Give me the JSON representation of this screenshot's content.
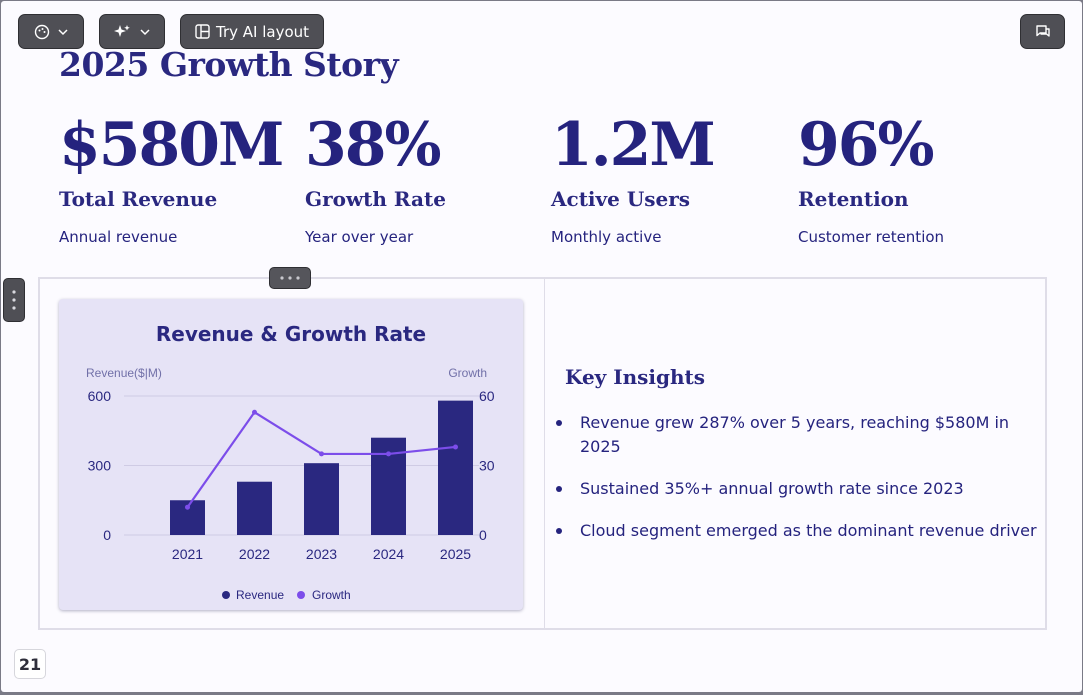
{
  "toolbar": {
    "theme_icon": "palette-icon",
    "ai_icon": "sparkle-icon",
    "try_ai_layout_label": "Try AI layout",
    "comment_icon": "chat-icon"
  },
  "slide": {
    "title": "2025 Growth Story",
    "page_number": "21",
    "stats": [
      {
        "value": "$580M",
        "label": "Total Revenue",
        "sub": "Annual revenue"
      },
      {
        "value": "38%",
        "label": "Growth Rate",
        "sub": "Year over year"
      },
      {
        "value": "1.2M",
        "label": "Active Users",
        "sub": "Monthly active"
      },
      {
        "value": "96%",
        "label": "Retention",
        "sub": "Customer retention"
      }
    ],
    "insights": {
      "title": "Key Insights",
      "items": [
        "Revenue grew 287% over 5 years, reaching $580M in 2025",
        "Sustained 35%+ annual growth rate since 2023",
        "Cloud segment emerged as the dominant revenue driver"
      ]
    }
  },
  "colors": {
    "bar": "#2a2880",
    "line": "#7c4dea",
    "accent": "#25237e"
  },
  "chart_data": {
    "type": "bar",
    "title": "Revenue & Growth Rate",
    "categories": [
      "2021",
      "2022",
      "2023",
      "2024",
      "2025"
    ],
    "series": [
      {
        "name": "Revenue",
        "type": "bar",
        "axis": "left",
        "values": [
          150,
          230,
          310,
          420,
          580
        ]
      },
      {
        "name": "Growth",
        "type": "line",
        "axis": "right",
        "values": [
          12,
          53,
          35,
          35,
          38
        ]
      }
    ],
    "ylabel_left": "Revenue($|M)",
    "ylabel_right": "Growth",
    "ylim_left": [
      0,
      600
    ],
    "ylim_right": [
      0,
      60
    ],
    "yticks_left": [
      "0",
      "300",
      "600"
    ],
    "yticks_right": [
      "0",
      "30",
      "60"
    ],
    "grid": true,
    "legend": "bottom"
  }
}
